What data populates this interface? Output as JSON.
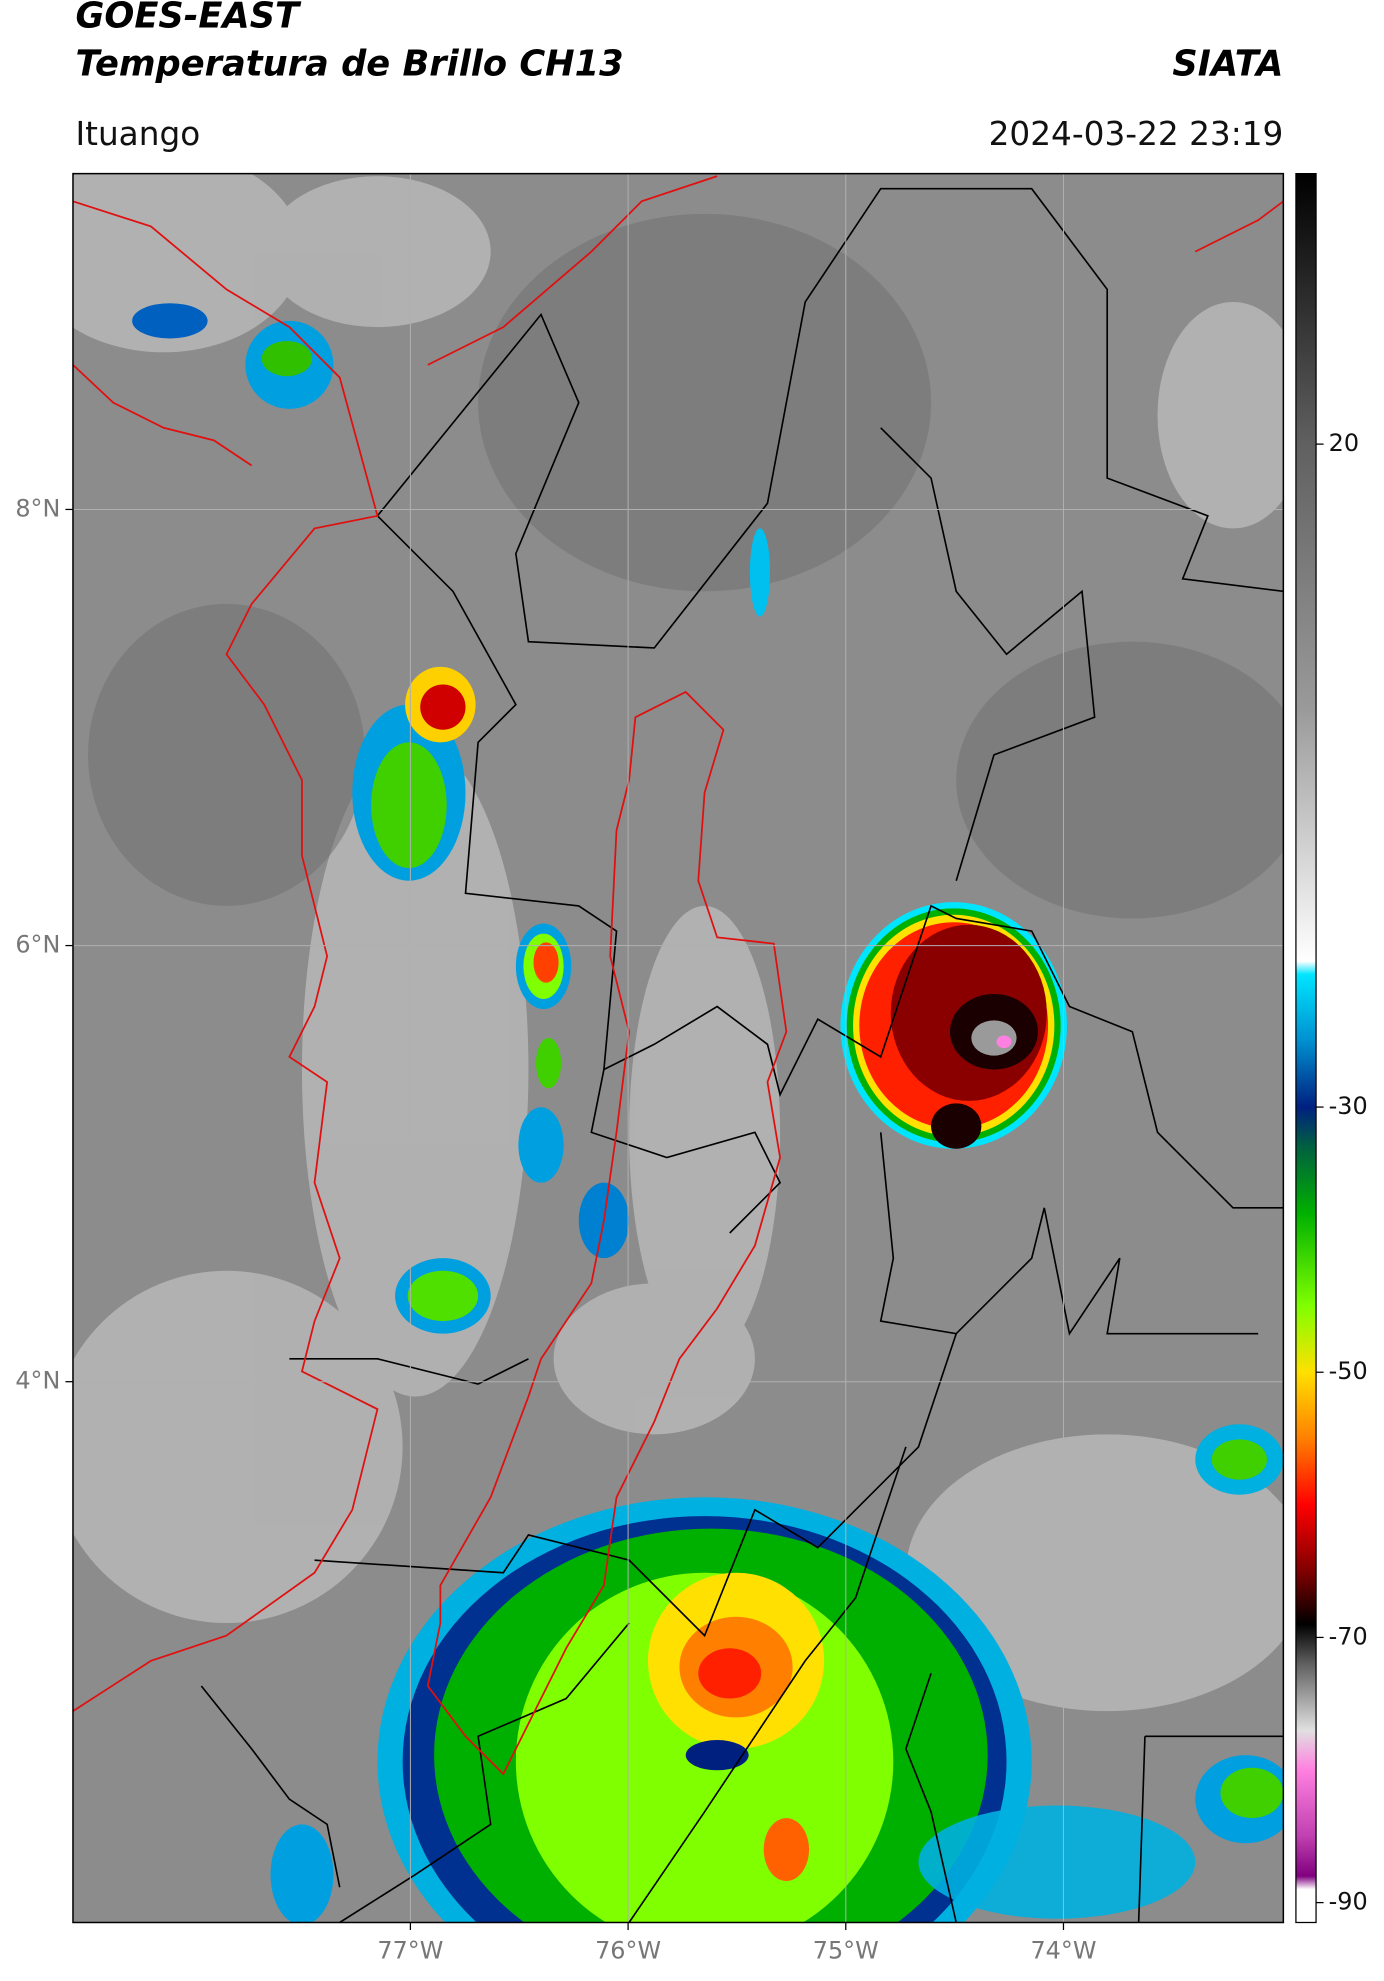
{
  "header": {
    "title": "GOES-EAST",
    "subtitle": "Temperatura de Brillo CH13",
    "source": "SIATA",
    "location": "Ituango",
    "datetime": "2024-03-22 23:19"
  },
  "map": {
    "xlim": [
      -78.55,
      -72.99
    ],
    "ylim": [
      1.52,
      9.54
    ],
    "xticks": [
      {
        "value": -77,
        "label": "77°W"
      },
      {
        "value": -76,
        "label": "76°W"
      },
      {
        "value": -75,
        "label": "75°W"
      },
      {
        "value": -74,
        "label": "74°W"
      }
    ],
    "yticks": [
      {
        "value": 4,
        "label": "4°N"
      },
      {
        "value": 6,
        "label": "6°N"
      },
      {
        "value": 8,
        "label": "8°N"
      }
    ],
    "grid": true
  },
  "colorbar": {
    "lim": [
      -91.5,
      40.4
    ],
    "ticks": [
      -90,
      -70,
      -50,
      -30,
      20
    ],
    "stops": [
      {
        "value": 40.4,
        "color": "#000000"
      },
      {
        "value": 20,
        "color": "#606060"
      },
      {
        "value": 0,
        "color": "#9a9a9a"
      },
      {
        "value": -19,
        "color": "#ffffff"
      },
      {
        "value": -20,
        "color": "#00e5ff"
      },
      {
        "value": -25,
        "color": "#0090d0"
      },
      {
        "value": -30,
        "color": "#002080"
      },
      {
        "value": -33,
        "color": "#006040"
      },
      {
        "value": -38,
        "color": "#00b000"
      },
      {
        "value": -45,
        "color": "#80ff00"
      },
      {
        "value": -50,
        "color": "#ffe000"
      },
      {
        "value": -55,
        "color": "#ff8000"
      },
      {
        "value": -60,
        "color": "#ff0000"
      },
      {
        "value": -65,
        "color": "#800000"
      },
      {
        "value": -69,
        "color": "#000000"
      },
      {
        "value": -72,
        "color": "#606060"
      },
      {
        "value": -77,
        "color": "#e0e0e0"
      },
      {
        "value": -80,
        "color": "#ff80e0"
      },
      {
        "value": -85,
        "color": "#c040b0"
      },
      {
        "value": -88,
        "color": "#800080"
      },
      {
        "value": -89,
        "color": "#ffffff"
      },
      {
        "value": -91.5,
        "color": "#ffffff"
      }
    ]
  }
}
